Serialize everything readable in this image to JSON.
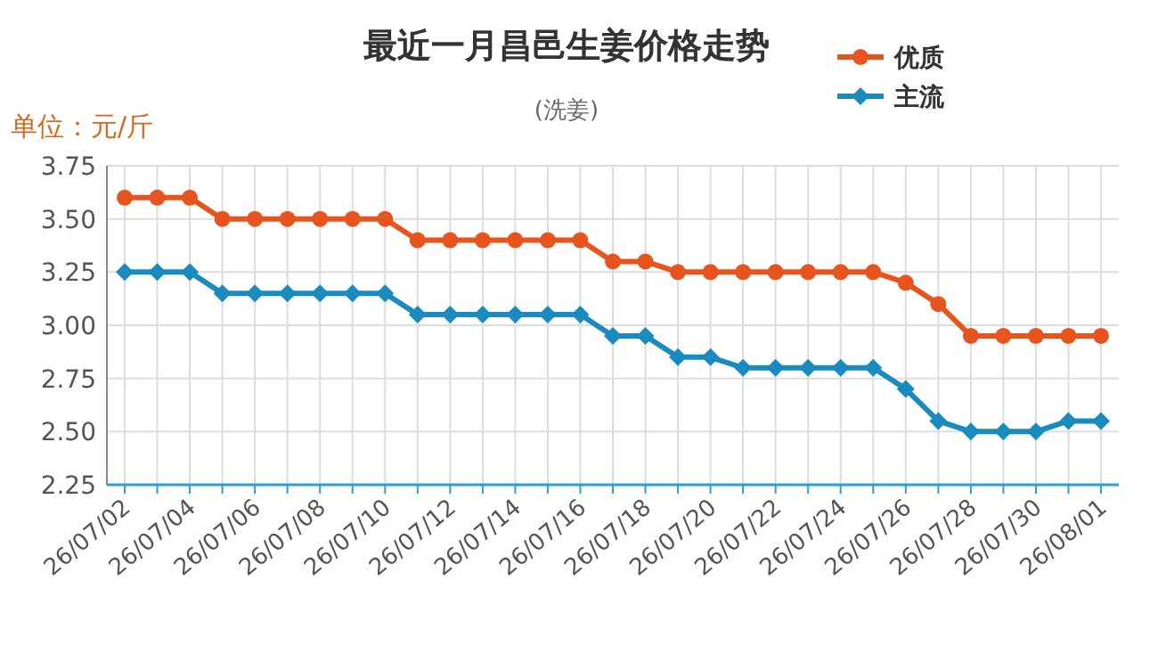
{
  "chart_data": {
    "type": "line",
    "title": "最近一月昌邑生姜价格走势",
    "subtitle": "(洗姜)",
    "annotations": [
      "单位：元/斤"
    ],
    "categories": [
      "26/07/02",
      null,
      "26/07/04",
      null,
      "26/07/06",
      null,
      "26/07/08",
      null,
      "26/07/10",
      null,
      "26/07/12",
      null,
      "26/07/14",
      null,
      "26/07/16",
      null,
      "26/07/18",
      null,
      "26/07/20",
      null,
      "26/07/22",
      null,
      "26/07/24",
      null,
      "26/07/26",
      null,
      "26/07/28",
      null,
      "26/07/30",
      null,
      "26/08/01"
    ],
    "series": [
      {
        "name": "优质",
        "color": "#e8541e",
        "marker": "circle",
        "values": [
          3.6,
          3.6,
          3.6,
          3.5,
          3.5,
          3.5,
          3.5,
          3.5,
          3.5,
          3.4,
          3.4,
          3.4,
          3.4,
          3.4,
          3.4,
          3.3,
          3.3,
          3.25,
          3.25,
          3.25,
          3.25,
          3.25,
          3.25,
          3.25,
          3.2,
          3.1,
          2.95,
          2.95,
          2.95,
          2.95,
          2.95
        ]
      },
      {
        "name": "主流",
        "color": "#1a8bbf",
        "marker": "diamond",
        "values": [
          3.25,
          3.25,
          3.25,
          3.15,
          3.15,
          3.15,
          3.15,
          3.15,
          3.15,
          3.05,
          3.05,
          3.05,
          3.05,
          3.05,
          3.05,
          2.95,
          2.95,
          2.85,
          2.85,
          2.8,
          2.8,
          2.8,
          2.8,
          2.8,
          2.7,
          2.55,
          2.5,
          2.5,
          2.5,
          2.55,
          2.55
        ]
      }
    ],
    "ylim": [
      2.25,
      3.75
    ],
    "yticks": [
      2.25,
      {
        "value": 2.5,
        "label": "2.50"
      },
      2.75,
      {
        "value": 3,
        "label": "3.00"
      },
      3.25,
      {
        "value": 3.5,
        "label": "3.50"
      },
      3.75
    ],
    "grid": true,
    "legend": "top right",
    "line_style": "solid"
  }
}
